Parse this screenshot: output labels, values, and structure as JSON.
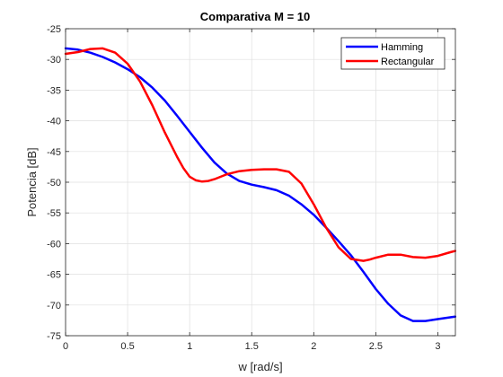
{
  "chart_data": {
    "type": "line",
    "title": "Comparativa M = 10",
    "xlabel": "w [rad/s]",
    "ylabel": "Potencia [dB]",
    "xlim": [
      0,
      3.14159
    ],
    "ylim": [
      -75,
      -25
    ],
    "xticks": [
      0,
      0.5,
      1,
      1.5,
      2,
      2.5,
      3
    ],
    "xtick_labels": [
      "0",
      "0.5",
      "1",
      "1.5",
      "2",
      "2.5",
      "3"
    ],
    "yticks": [
      -75,
      -70,
      -65,
      -60,
      -55,
      -50,
      -45,
      -40,
      -35,
      -30,
      -25
    ],
    "ytick_labels": [
      "-75",
      "-70",
      "-65",
      "-60",
      "-55",
      "-50",
      "-45",
      "-40",
      "-35",
      "-30",
      "-25"
    ],
    "grid": true,
    "legend_position": "top-right",
    "series": [
      {
        "name": "Hamming",
        "color": "#0000ff",
        "x": [
          0,
          0.1,
          0.2,
          0.3,
          0.4,
          0.5,
          0.6,
          0.7,
          0.8,
          0.9,
          1.0,
          1.1,
          1.2,
          1.3,
          1.4,
          1.5,
          1.6,
          1.7,
          1.8,
          1.9,
          2.0,
          2.1,
          2.2,
          2.3,
          2.4,
          2.5,
          2.6,
          2.7,
          2.8,
          2.9,
          3.0,
          3.1,
          3.14
        ],
        "y": [
          -28.2,
          -28.4,
          -28.9,
          -29.6,
          -30.5,
          -31.6,
          -32.9,
          -34.6,
          -36.7,
          -39.2,
          -41.8,
          -44.4,
          -46.8,
          -48.6,
          -49.8,
          -50.4,
          -50.8,
          -51.3,
          -52.2,
          -53.6,
          -55.3,
          -57.4,
          -59.6,
          -61.9,
          -64.6,
          -67.4,
          -69.8,
          -71.7,
          -72.6,
          -72.6,
          -72.3,
          -72.0,
          -71.9
        ]
      },
      {
        "name": "Rectangular",
        "color": "#ff0000",
        "x": [
          0,
          0.1,
          0.2,
          0.3,
          0.4,
          0.5,
          0.6,
          0.7,
          0.8,
          0.9,
          0.95,
          1.0,
          1.05,
          1.1,
          1.15,
          1.2,
          1.3,
          1.4,
          1.5,
          1.6,
          1.7,
          1.8,
          1.9,
          2.0,
          2.1,
          2.2,
          2.3,
          2.4,
          2.45,
          2.5,
          2.6,
          2.7,
          2.8,
          2.9,
          3.0,
          3.1,
          3.14
        ],
        "y": [
          -29.1,
          -28.8,
          -28.3,
          -28.2,
          -28.9,
          -30.7,
          -33.6,
          -37.5,
          -41.9,
          -45.9,
          -47.7,
          -49.1,
          -49.7,
          -49.9,
          -49.8,
          -49.5,
          -48.7,
          -48.2,
          -48.0,
          -47.9,
          -47.9,
          -48.3,
          -50.2,
          -53.6,
          -57.4,
          -60.6,
          -62.5,
          -62.8,
          -62.6,
          -62.3,
          -61.8,
          -61.8,
          -62.2,
          -62.3,
          -62.0,
          -61.4,
          -61.2
        ]
      }
    ]
  }
}
